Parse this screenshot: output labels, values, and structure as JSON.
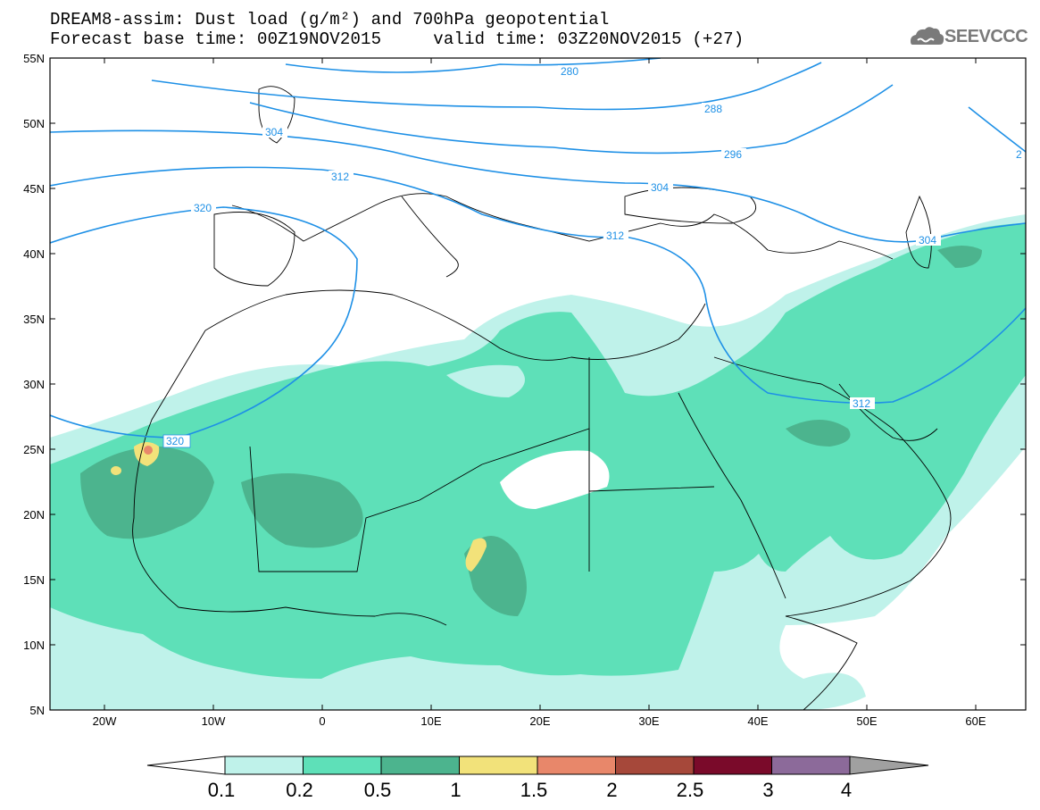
{
  "header": {
    "title_line1": "DREAM8-assim: Dust load (g/m²) and 700hPa geopotential",
    "title_line2": "Forecast base time: 00Z19NOV2015     valid time: 03Z20NOV2015 (+27)",
    "logo_text": "SEEVCCC"
  },
  "map": {
    "lat_labels": [
      "55N",
      "50N",
      "45N",
      "40N",
      "35N",
      "30N",
      "25N",
      "20N",
      "15N",
      "10N",
      "5N"
    ],
    "lon_labels": [
      "20W",
      "10W",
      "0",
      "10E",
      "20E",
      "30E",
      "40E",
      "50E",
      "60E"
    ],
    "contour_labels": [
      "280",
      "288",
      "296",
      "304",
      "304",
      "304",
      "312",
      "312",
      "312",
      "320",
      "320",
      "2"
    ],
    "colors": {
      "land_lines": "#000000",
      "contour": "#1e90e6",
      "level_0_1": "#bff2ea",
      "level_0_2": "#5ee0b8",
      "level_0_5": "#4cb48e",
      "level_1": "#f2e27a",
      "level_1_5": "#e8876a"
    }
  },
  "colorbar": {
    "labels": [
      "0.1",
      "0.2",
      "0.5",
      "1",
      "1.5",
      "2",
      "2.5",
      "3",
      "4"
    ],
    "colors": [
      "#bff2ea",
      "#5ee0b8",
      "#4cb48e",
      "#f2e27a",
      "#e8876a",
      "#a6483a",
      "#7a0a2a",
      "#8c6a9a"
    ],
    "under_color": "#ffffff",
    "over_color": "#a0a0a0"
  }
}
